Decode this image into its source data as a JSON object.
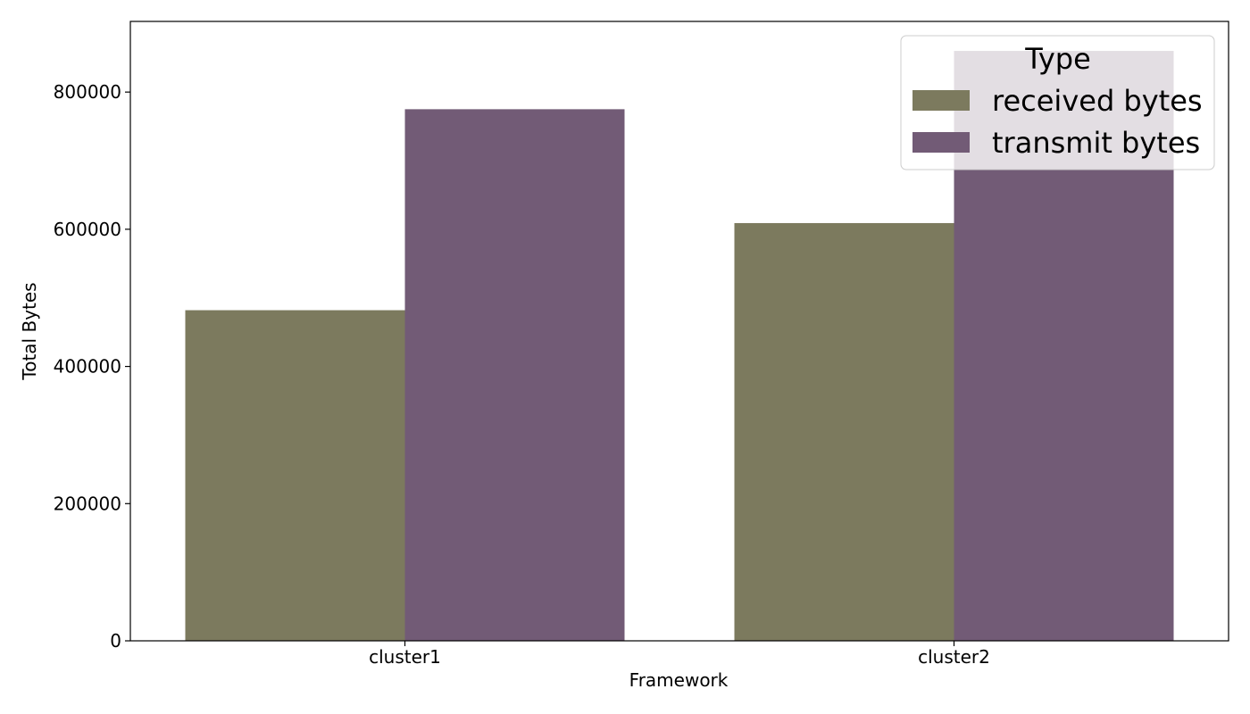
{
  "chart_data": {
    "type": "bar",
    "categories": [
      "cluster1",
      "cluster2"
    ],
    "series": [
      {
        "name": "received bytes",
        "color": "#7c7a5e",
        "values": [
          482000,
          609000
        ]
      },
      {
        "name": "transmit bytes",
        "color": "#725b76",
        "values": [
          775000,
          860000
        ]
      }
    ],
    "xlabel": "Framework",
    "ylabel": "Total Bytes",
    "ylim": [
      0,
      903000
    ],
    "yticks": [
      0,
      200000,
      400000,
      600000,
      800000
    ],
    "ytick_labels": [
      "0",
      "200000",
      "400000",
      "600000",
      "800000"
    ],
    "legend": {
      "title": "Type",
      "placement": "top-right"
    },
    "grid": false
  }
}
